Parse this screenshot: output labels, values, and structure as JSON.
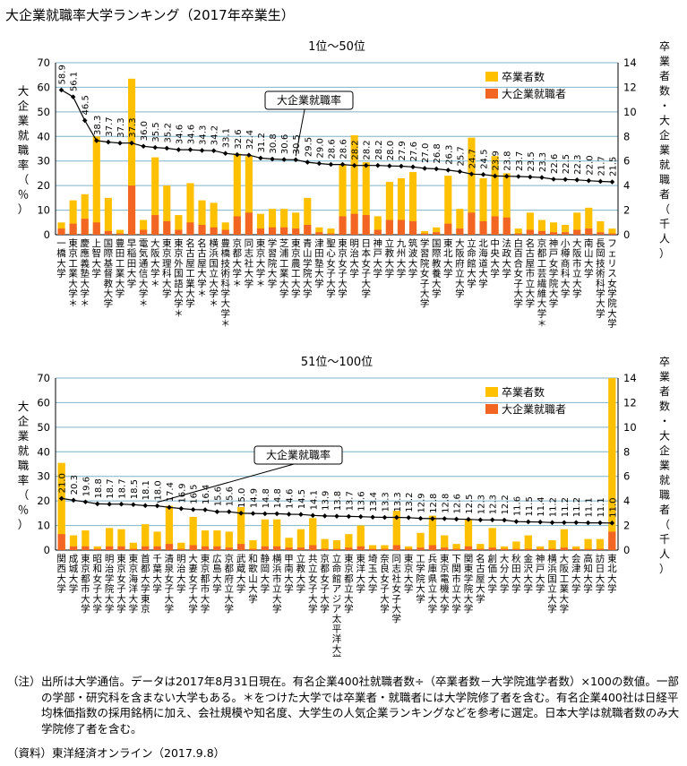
{
  "page_title": "大企業就職率大学ランキング（2017年卒業生）",
  "notes_label": "（注）",
  "notes_text": "出所は大学通信。データは2017年8月31日現在。有名企業400社就職者数÷（卒業者数－大学院進学者数）×100の数値。一部の学部・研究科を含まない大学もある。＊をつけた大学では卒業者・就職者には大学院修了者を含む。有名企業400社は日経平均株価指数の採用銘柄に加え、会社規模や知名度、大学生の人気企業ランキングなどを参考に選定。日本大学は就職者数のみ大学院修了者を含む。",
  "source_text": "（資料）東洋経済オンライン（2017.9.8）",
  "colors": {
    "graduates": "#FFC000",
    "employed": "#F26522",
    "rate_line": "#000000",
    "grid": "#7FB2C8"
  },
  "chart_data": [
    {
      "type": "bar",
      "title": "1位〜50位",
      "ylabel": "大企業就職率（％）",
      "ylabel2": "卒業者数・大企業就職者（千人）",
      "ylim": [
        0,
        70
      ],
      "ylim2": [
        0,
        14
      ],
      "yticks": [
        0,
        10,
        20,
        30,
        40,
        50,
        60,
        70
      ],
      "yticks2": [
        0,
        2,
        4,
        6,
        8,
        10,
        12,
        14
      ],
      "legend": [
        "卒業者数",
        "大企業就職者"
      ],
      "legend_position": "top-right",
      "line_label": "大企業就職率",
      "categories": [
        "一橋大学",
        "東京工業大学＊",
        "慶應義塾大学＊",
        "上智大学",
        "国際基督教大学",
        "豊田工業大学",
        "早稲田大学",
        "電気通信大学＊",
        "大阪大学＊",
        "東京理科大学",
        "東京外国語大学＊",
        "名古屋工業大学",
        "名古屋大学＊",
        "横浜国立大学＊",
        "豊橋技術科学大学＊",
        "京都大学＊",
        "同志社大学",
        "東京大学＊",
        "学習院大学",
        "芝浦工業大学",
        "東京農工大学",
        "青山学院大学",
        "津田塾大学",
        "聖心女子大学",
        "東京女子大学",
        "明治大学",
        "日本女子大学",
        "神戸大学",
        "立教大学",
        "九州大学",
        "筑波大学",
        "学習院女子大学",
        "国際教養大学",
        "東北大学",
        "大阪府立大学",
        "立命館大学",
        "北海道大学",
        "中央大学",
        "法政大学",
        "白百合女子大学",
        "名古屋市立大学",
        "京都工芸繊維大学＊",
        "神戸女学院大学",
        "小樽商科大学",
        "大阪市立大学",
        "南山大学",
        "長岡技術科学大学",
        "フェリス女学院大学"
      ],
      "rate": [
        58.9,
        56.1,
        46.5,
        38.3,
        37.7,
        37.3,
        37.3,
        36.0,
        35.5,
        35.2,
        34.6,
        34.6,
        34.3,
        34.2,
        33.1,
        32.6,
        32.4,
        31.2,
        30.8,
        30.6,
        30.5,
        29.5,
        29.0,
        28.6,
        28.6,
        28.2,
        28.2,
        28.2,
        28.0,
        27.9,
        27.6,
        27.0,
        26.8,
        26.3,
        25.7,
        24.7,
        24.5,
        23.9,
        23.8,
        23.7,
        23.5,
        23.3,
        22.6,
        22.5,
        22.3,
        22.0,
        21.7,
        21.5
      ],
      "graduates": [
        1.0,
        2.8,
        3.3,
        8.0,
        3.0,
        0.4,
        12.7,
        1.2,
        6.3,
        4.0,
        1.6,
        4.2,
        2.8,
        2.6,
        1.0,
        6.6,
        6.4,
        1.7,
        2.1,
        2.1,
        1.8,
        3.0,
        0.6,
        0.5,
        5.7,
        8.1,
        5.9,
        1.5,
        4.3,
        4.6,
        5.1,
        0.3,
        0.6,
        4.8,
        2.1,
        7.9,
        4.6,
        6.4,
        5.0,
        0.5,
        1.8,
        1.2,
        1.0,
        0.8,
        1.8,
        2.2,
        1.1,
        0.5
      ],
      "employed": [
        0.5,
        0.9,
        1.3,
        1.0,
        0.3,
        0.1,
        4.0,
        0.4,
        1.6,
        1.1,
        0.4,
        1.0,
        0.8,
        0.6,
        0.4,
        1.5,
        1.8,
        0.5,
        0.6,
        0.6,
        0.5,
        0.8,
        0.2,
        0.1,
        1.5,
        1.7,
        1.6,
        0.4,
        1.2,
        1.2,
        1.1,
        0.1,
        0.2,
        0.9,
        0.5,
        1.8,
        1.1,
        1.5,
        1.4,
        0.1,
        0.4,
        0.3,
        0.2,
        0.2,
        0.4,
        0.5,
        0.2,
        0.1
      ]
    },
    {
      "type": "bar",
      "title": "51位〜100位",
      "ylabel": "大企業就職率（％）",
      "ylabel2": "卒業者数・大企業就職者（千人）",
      "ylim": [
        0,
        70
      ],
      "ylim2": [
        0,
        14
      ],
      "yticks": [
        0,
        10,
        20,
        30,
        40,
        50,
        60,
        70
      ],
      "yticks2": [
        0,
        2,
        4,
        6,
        8,
        10,
        12,
        14
      ],
      "legend": [
        "卒業者数",
        "大企業就職者"
      ],
      "legend_position": "top-right",
      "line_label": "大企業就職率",
      "categories": [
        "関西大学",
        "成城大学",
        "東京都市大学",
        "昭和女子大学",
        "明治学院大学",
        "東京女子大学",
        "東京海洋大学",
        "首都大学東京",
        "千葉大学",
        "清泉女子大学",
        "明治大学",
        "大妻女子大学",
        "東京都市大学",
        "広島大学",
        "京都府立大学",
        "武蔵大学",
        "和歌山大学",
        "静岡大学",
        "横浜市立大学",
        "甲南大学",
        "立教大学",
        "共立女子大学",
        "京都女子大学",
        "立命館アジア太平洋大学＊",
        "東京都立大学",
        "東洋大学",
        "埼玉大学",
        "奈良女子大学",
        "同志社女子大学",
        "東京大学",
        "工学院大学",
        "兵庫県立大学",
        "東京電機大学",
        "下関市立大学",
        "関東学院大学",
        "名古屋大学",
        "創価大学",
        "大分大学",
        "秋田大学",
        "金沢大学",
        "神戸大学",
        "横浜国立大学",
        "大阪工業大学",
        "会津大学",
        "高知大学",
        "訪日大学",
        "東北大学"
      ],
      "rate": [
        21.0,
        20.3,
        19.6,
        18.8,
        18.7,
        18.7,
        18.5,
        18.1,
        18.0,
        17.4,
        16.9,
        16.5,
        16.4,
        15.6,
        15.6,
        15.0,
        14.9,
        14.8,
        14.8,
        14.6,
        14.5,
        14.1,
        13.9,
        13.8,
        13.7,
        13.6,
        13.4,
        13.3,
        13.3,
        13.2,
        12.9,
        12.8,
        12.8,
        12.6,
        12.5,
        12.3,
        12.3,
        12.2,
        11.6,
        11.5,
        11.4,
        11.2,
        11.2,
        11.2,
        11.1,
        11.1,
        11.0
      ],
      "graduates": [
        7.1,
        1.2,
        1.6,
        0.3,
        1.8,
        1.7,
        0.6,
        2.1,
        1.5,
        3.6,
        0.6,
        2.7,
        1.6,
        1.6,
        1.5,
        3.5,
        0.8,
        2.5,
        2.5,
        1.0,
        1.7,
        2.6,
        0.9,
        0.8,
        1.3,
        2.0,
        0.4,
        0.4,
        3.2,
        0.3,
        1.4,
        2.8,
        1.2,
        0.5,
        2.5,
        0.5,
        1.8,
        0.3,
        0.7,
        1.2,
        0.3,
        0.8,
        1.7,
        0.3,
        0.9,
        0.9,
        14.0
      ],
      "employed": [
        1.3,
        0.3,
        0.3,
        0.1,
        0.3,
        0.3,
        0.1,
        0.3,
        0.3,
        0.5,
        0.1,
        0.4,
        0.3,
        0.3,
        0.2,
        0.5,
        0.1,
        0.3,
        0.3,
        0.2,
        0.2,
        0.4,
        0.1,
        0.1,
        0.2,
        0.3,
        0.1,
        0.1,
        0.4,
        0.1,
        0.2,
        0.4,
        0.2,
        0.1,
        0.3,
        0.1,
        0.2,
        0.1,
        0.1,
        0.1,
        0.1,
        0.1,
        0.2,
        0.1,
        0.1,
        0.1,
        1.5
      ]
    }
  ]
}
